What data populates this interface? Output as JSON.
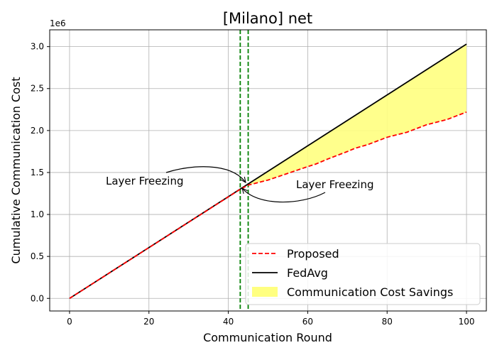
{
  "chart_data": {
    "type": "line",
    "title": "[Milano] net",
    "xlabel": "Communication Round",
    "ylabel": "Cumulative Communication Cost",
    "y_scale_label": "1e6",
    "xlim": [
      -5,
      105
    ],
    "ylim": [
      -0.15,
      3.2
    ],
    "x_ticks": [
      0,
      20,
      40,
      60,
      80,
      100
    ],
    "x_tick_labels": [
      "0",
      "20",
      "40",
      "60",
      "80",
      "100"
    ],
    "y_ticks": [
      0,
      0.5,
      1.0,
      1.5,
      2.0,
      2.5,
      3.0
    ],
    "y_tick_labels": [
      "0.0",
      "0.5",
      "1.0",
      "1.5",
      "2.0",
      "2.5",
      "3.0"
    ],
    "grid": true,
    "series": [
      {
        "name": "Proposed",
        "style": "dashed",
        "color": "#ff0000",
        "x": [
          0,
          43,
          45,
          50,
          55,
          60,
          62,
          65,
          70,
          72,
          75,
          80,
          85,
          90,
          95,
          100
        ],
        "y": [
          0,
          1.3,
          1.35,
          1.41,
          1.49,
          1.57,
          1.6,
          1.66,
          1.75,
          1.79,
          1.83,
          1.92,
          1.98,
          2.07,
          2.13,
          2.22
        ]
      },
      {
        "name": "FedAvg",
        "style": "solid",
        "color": "#000000",
        "x": [
          0,
          100
        ],
        "y": [
          0,
          3.03
        ]
      }
    ],
    "fill_between": {
      "name": "Communication Cost Savings",
      "color": "#ffff80",
      "x_start": 44
    },
    "vertical_lines": [
      {
        "x": 43,
        "color": "#008000",
        "style": "dashed"
      },
      {
        "x": 45,
        "color": "#008000",
        "style": "dashed"
      }
    ],
    "annotations": [
      {
        "text": "Layer Freezing",
        "target": [
          44,
          1.36
        ]
      },
      {
        "text": "Layer Freezing",
        "target": [
          43,
          1.29
        ]
      }
    ],
    "legend_position": "lower-right"
  }
}
